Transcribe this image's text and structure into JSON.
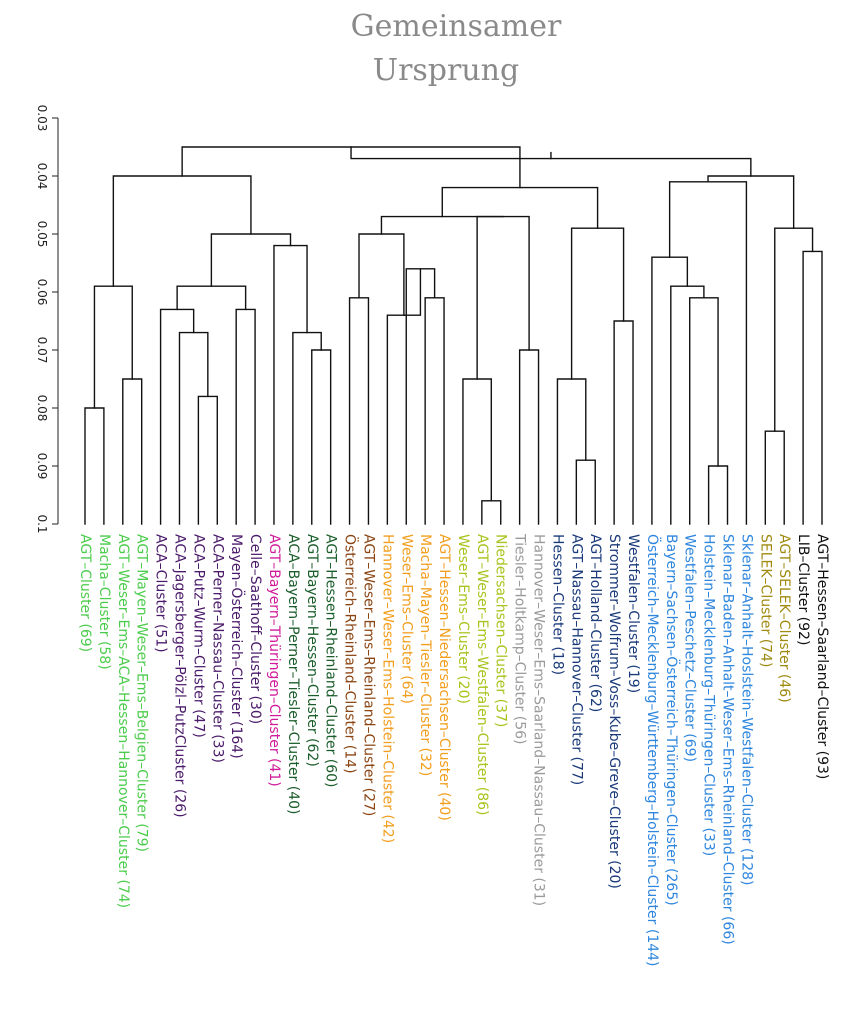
{
  "chart_data": {
    "type": "dendrogram",
    "title_lines": [
      "Gemeinsamer",
      "Ursprung"
    ],
    "xlabel": "",
    "ylabel": "",
    "y_axis": {
      "ticks": [
        0.03,
        0.04,
        0.05,
        0.06,
        0.07,
        0.08,
        0.09,
        0.1
      ],
      "tick_labels": [
        "0.03",
        "0.04",
        "0.05",
        "0.06",
        "0.07",
        "0.08",
        "0.09",
        "0.1"
      ],
      "range": [
        0.1,
        0.03
      ],
      "label_orientation": "rotated-90"
    },
    "grid": false,
    "legend": "none",
    "colors": {
      "light_green": "#4ccc4c",
      "purple": "#4b1a6a",
      "magenta": "#d01b9a",
      "dark_green": "#1b5e2b",
      "brown": "#8b4513",
      "orange": "#f29e1e",
      "lime": "#a8c41e",
      "gray": "#9a9a9a",
      "navy": "#1a3a7a",
      "blue": "#2e86de",
      "olive": "#a08a10",
      "black": "#111111"
    },
    "leaves": [
      {
        "label": "AGT–Cluster (69)",
        "color": "light_green"
      },
      {
        "label": "Macha–Cluster (58)",
        "color": "light_green"
      },
      {
        "label": "AGT–Weser–Ems–ACA–Hessen–Hannover–Cluster (74)",
        "color": "light_green"
      },
      {
        "label": "AGT–Mayen–Weser–Ems–Belgien–Cluster (79)",
        "color": "light_green"
      },
      {
        "label": "ACA–Cluster (51)",
        "color": "purple"
      },
      {
        "label": "ACA–Jagersberger–Pölzl–PutzCluster (26)",
        "color": "purple"
      },
      {
        "label": "ACA–Putz–Wurm–Cluster (47)",
        "color": "purple"
      },
      {
        "label": "ACA–Perner–Nassau–Cluster (33)",
        "color": "purple"
      },
      {
        "label": "Mayen–Österreich–Cluster (164)",
        "color": "purple"
      },
      {
        "label": "Celle–Saathoff–Cluster (30)",
        "color": "purple"
      },
      {
        "label": "AGT–Bayern–Thüringen–Cluster (41)",
        "color": "magenta"
      },
      {
        "label": "ACA–Bayern–Perner–Tiesler–Cluster (40)",
        "color": "dark_green"
      },
      {
        "label": "AGT–Bayern–Hessen–Cluster (62)",
        "color": "dark_green"
      },
      {
        "label": "AGT–Hessen–Rheinland–Cluster (60)",
        "color": "dark_green"
      },
      {
        "label": "Österreich–Rheinland–Cluster (14)",
        "color": "brown"
      },
      {
        "label": "AGT–Weser–Ems–Rheinland–Cluster (27)",
        "color": "brown"
      },
      {
        "label": "Hannover–Weser–Ems–Holstein–Cluster (42)",
        "color": "orange"
      },
      {
        "label": "Weser–Ems–Cluster (64)",
        "color": "orange"
      },
      {
        "label": "Macha–Mayen–Tiesler–Cluster (32)",
        "color": "orange"
      },
      {
        "label": "AGT–Hessen–Niedersachsen–Cluster (40)",
        "color": "orange"
      },
      {
        "label": "Weser–Ems–Cluster (20)",
        "color": "lime"
      },
      {
        "label": "AGT–Weser–Ems–Westfalen–Cluster (86)",
        "color": "lime"
      },
      {
        "label": "Niedersachsen–Cluster (37)",
        "color": "lime"
      },
      {
        "label": "Tiesler–Holtkamp–Cluster (56)",
        "color": "gray"
      },
      {
        "label": "Hannover–Weser–Ems–Saarland–Nassau–Cluster (31)",
        "color": "gray"
      },
      {
        "label": "Hessen–Cluster (18)",
        "color": "navy"
      },
      {
        "label": "AGT–Nassau–Hannover–Cluster (77)",
        "color": "navy"
      },
      {
        "label": "AGT–Holland–Cluster (62)",
        "color": "navy"
      },
      {
        "label": "Strommer–Wolfrum–Voss–Kube–Greve–Cluster (20)",
        "color": "navy"
      },
      {
        "label": "Westfalen–Cluster (19)",
        "color": "navy"
      },
      {
        "label": "Österreich–Mecklenburg–Württemberg–Holstein–Cluster (144)",
        "color": "blue"
      },
      {
        "label": "Bayern–Sachsen–Österreich–Thüringen–Cluster (265)",
        "color": "blue"
      },
      {
        "label": "Westfalen–Peschetz–Cluster (69)",
        "color": "blue"
      },
      {
        "label": "Holstein–Mecklenburg–Thüringen–Cluster (33)",
        "color": "blue"
      },
      {
        "label": "Sklenar–Baden–Anhalt–Weser–Ems–Rheinland–Cluster (66)",
        "color": "blue"
      },
      {
        "label": "Sklenar–Anhalt–Hoslstein–Westfalen–Cluster (128)",
        "color": "blue"
      },
      {
        "label": "SELEK–Cluster (74)",
        "color": "olive"
      },
      {
        "label": "AGT–SELEK–Cluster (46)",
        "color": "olive"
      },
      {
        "label": "LIB–Cluster (92)",
        "color": "black"
      },
      {
        "label": "AGT–Hessen–Saarland–Cluster (93)",
        "color": "black"
      }
    ],
    "merges": [
      {
        "id": "n1",
        "children": [
          "L0",
          "L1"
        ],
        "height": 0.08
      },
      {
        "id": "n2",
        "children": [
          "L2",
          "L3"
        ],
        "height": 0.075
      },
      {
        "id": "n3",
        "children": [
          "n1",
          "n2"
        ],
        "height": 0.059
      },
      {
        "id": "n4",
        "children": [
          "L6",
          "L7"
        ],
        "height": 0.078
      },
      {
        "id": "n5",
        "children": [
          "L5",
          "n4"
        ],
        "height": 0.067
      },
      {
        "id": "n6",
        "children": [
          "L4",
          "n5"
        ],
        "height": 0.063
      },
      {
        "id": "n7",
        "children": [
          "L8",
          "L9"
        ],
        "height": 0.063
      },
      {
        "id": "n8",
        "children": [
          "n6",
          "n7"
        ],
        "height": 0.059
      },
      {
        "id": "n9",
        "children": [
          "L12",
          "L13"
        ],
        "height": 0.07
      },
      {
        "id": "n10",
        "children": [
          "L11",
          "n9"
        ],
        "height": 0.067
      },
      {
        "id": "n11",
        "children": [
          "L10",
          "n10"
        ],
        "height": 0.052
      },
      {
        "id": "n12",
        "children": [
          "n8",
          "n11"
        ],
        "height": 0.05
      },
      {
        "id": "n13",
        "children": [
          "n3",
          "n12"
        ],
        "height": 0.04
      },
      {
        "id": "n14",
        "children": [
          "L14",
          "L15"
        ],
        "height": 0.061
      },
      {
        "id": "n15",
        "children": [
          "L18",
          "L19"
        ],
        "height": 0.061
      },
      {
        "id": "n16",
        "children": [
          "L17",
          "n15"
        ],
        "height": 0.056
      },
      {
        "id": "n17",
        "children": [
          "L16",
          "n16"
        ],
        "height": 0.064
      },
      {
        "id": "n18",
        "children": [
          "n14",
          "n17"
        ],
        "height": 0.05
      },
      {
        "id": "n19",
        "children": [
          "L21",
          "L22"
        ],
        "height": 0.096
      },
      {
        "id": "n20",
        "children": [
          "L20",
          "n19"
        ],
        "height": 0.075
      },
      {
        "id": "n21",
        "children": [
          "L23",
          "L24"
        ],
        "height": 0.07
      },
      {
        "id": "n22",
        "children": [
          "n20",
          "n21"
        ],
        "height": 0.047
      },
      {
        "id": "n23",
        "children": [
          "n18",
          "n22"
        ],
        "height": 0.047
      },
      {
        "id": "n24",
        "children": [
          "L26",
          "L27"
        ],
        "height": 0.089
      },
      {
        "id": "n25",
        "children": [
          "L25",
          "n24"
        ],
        "height": 0.075
      },
      {
        "id": "n26",
        "children": [
          "L28",
          "L29"
        ],
        "height": 0.065
      },
      {
        "id": "n27",
        "children": [
          "n25",
          "n26"
        ],
        "height": 0.049
      },
      {
        "id": "n28",
        "children": [
          "n23",
          "n27"
        ],
        "height": 0.042
      },
      {
        "id": "n29",
        "children": [
          "n13",
          "n28"
        ],
        "height": 0.035
      },
      {
        "id": "n30",
        "children": [
          "L33",
          "L34"
        ],
        "height": 0.09
      },
      {
        "id": "n31",
        "children": [
          "L32",
          "n30"
        ],
        "height": 0.061
      },
      {
        "id": "n32",
        "children": [
          "L31",
          "n31"
        ],
        "height": 0.059
      },
      {
        "id": "n33",
        "children": [
          "L30",
          "n32"
        ],
        "height": 0.054
      },
      {
        "id": "n34",
        "children": [
          "n33",
          "L35"
        ],
        "height": 0.041
      },
      {
        "id": "n35",
        "children": [
          "L36",
          "L37"
        ],
        "height": 0.084
      },
      {
        "id": "n36",
        "children": [
          "L38",
          "L39"
        ],
        "height": 0.053
      },
      {
        "id": "n37",
        "children": [
          "n35",
          "n36"
        ],
        "height": 0.049
      },
      {
        "id": "n38",
        "children": [
          "n34",
          "n37"
        ],
        "height": 0.04
      },
      {
        "id": "root",
        "children": [
          "n29",
          "n38"
        ],
        "height": 0.037
      }
    ]
  }
}
